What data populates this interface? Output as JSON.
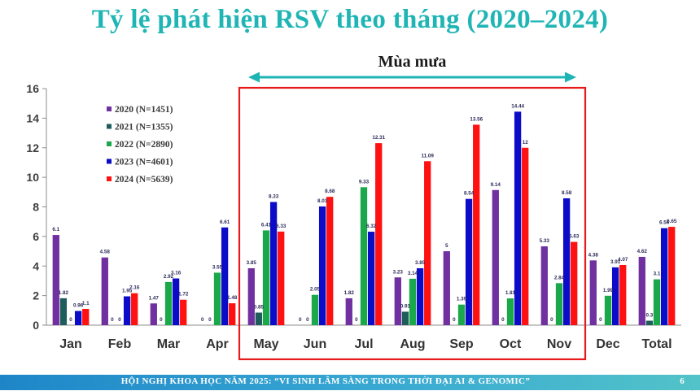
{
  "slide": {
    "title": "Tỷ lệ phát hiện RSV theo tháng (2020–2024)",
    "footer": "HỘI NGHỊ KHOA HỌC NĂM 2025: “VI SINH LÂM SÀNG TRONG THỜI ĐẠI AI & GENOMIC”",
    "page_number": "6"
  },
  "chart_data": {
    "type": "bar",
    "title": "Tỷ lệ phát hiện RSV theo tháng (2020–2024)",
    "xlabel": "",
    "ylabel": "",
    "ylim": [
      0,
      16
    ],
    "yticks": [
      0,
      2,
      4,
      6,
      8,
      10,
      12,
      14,
      16
    ],
    "grid": false,
    "legend_position": "top-left",
    "categories": [
      "Jan",
      "Feb",
      "Mar",
      "Apr",
      "May",
      "Jun",
      "Jul",
      "Aug",
      "Sep",
      "Oct",
      "Nov",
      "Dec",
      "Total"
    ],
    "series": [
      {
        "name": "2020 (N=1451)",
        "color": "#7030a0",
        "values": [
          6.1,
          4.58,
          1.47,
          0,
          3.85,
          0,
          1.82,
          3.23,
          5,
          9.14,
          5.33,
          4.38,
          4.62
        ],
        "labels": [
          "6.1",
          "4.58",
          "1.47",
          "0",
          "3.85",
          "0",
          "1.82",
          "3.23",
          "5",
          "9.14",
          "5.33",
          "4.38",
          "4.62"
        ]
      },
      {
        "name": "2021 (N=1355)",
        "color": "#1f5c5c",
        "values": [
          1.82,
          0,
          0,
          0,
          0.85,
          0,
          0,
          0.91,
          0,
          0,
          0,
          0,
          0.3
        ],
        "labels": [
          "1.82",
          "0",
          "0",
          "0",
          "0.85",
          "0",
          "0",
          "0.91",
          "0",
          "0",
          "0",
          "0",
          "0.3"
        ]
      },
      {
        "name": "2022 (N=2890)",
        "color": "#1aa84a",
        "values": [
          0,
          0,
          2.92,
          3.55,
          6.41,
          2.05,
          9.33,
          3.14,
          1.39,
          1.81,
          2.84,
          1.99,
          3.1
        ],
        "labels": [
          "0",
          "0",
          "2.92",
          "3.55",
          "6.41",
          "2.05",
          "9.33",
          "3.14",
          "1.39",
          "1.81",
          "2.84",
          "1.99",
          "3.1"
        ]
      },
      {
        "name": "2023 (N=4601)",
        "color": "#0b0bc8",
        "values": [
          0.96,
          1.95,
          3.16,
          6.61,
          8.33,
          8.03,
          6.32,
          3.85,
          8.54,
          14.44,
          8.58,
          3.91,
          6.56
        ],
        "labels": [
          "0.96",
          "1.95",
          "3.16",
          "6.61",
          "8.33",
          "8.03",
          "6.32",
          "3.85",
          "8.54",
          "14.44",
          "8.58",
          "3.91",
          "6.56"
        ]
      },
      {
        "name": "2024 (N=5639)",
        "color": "#ff1111",
        "values": [
          1.1,
          2.16,
          1.72,
          1.48,
          6.33,
          8.68,
          12.31,
          11.09,
          13.56,
          12,
          5.63,
          4.07,
          6.65
        ],
        "labels": [
          "1.1",
          "2.16",
          "1.72",
          "1.48",
          "6.33",
          "8.68",
          "12.31",
          "11.09",
          "13.56",
          "12",
          "5.63",
          "4.07",
          "6.65"
        ]
      }
    ],
    "annotations": [
      {
        "text": "Mùa mưa",
        "from_category": "May",
        "to_category": "Nov",
        "style": "double-arrow + red box"
      }
    ]
  }
}
